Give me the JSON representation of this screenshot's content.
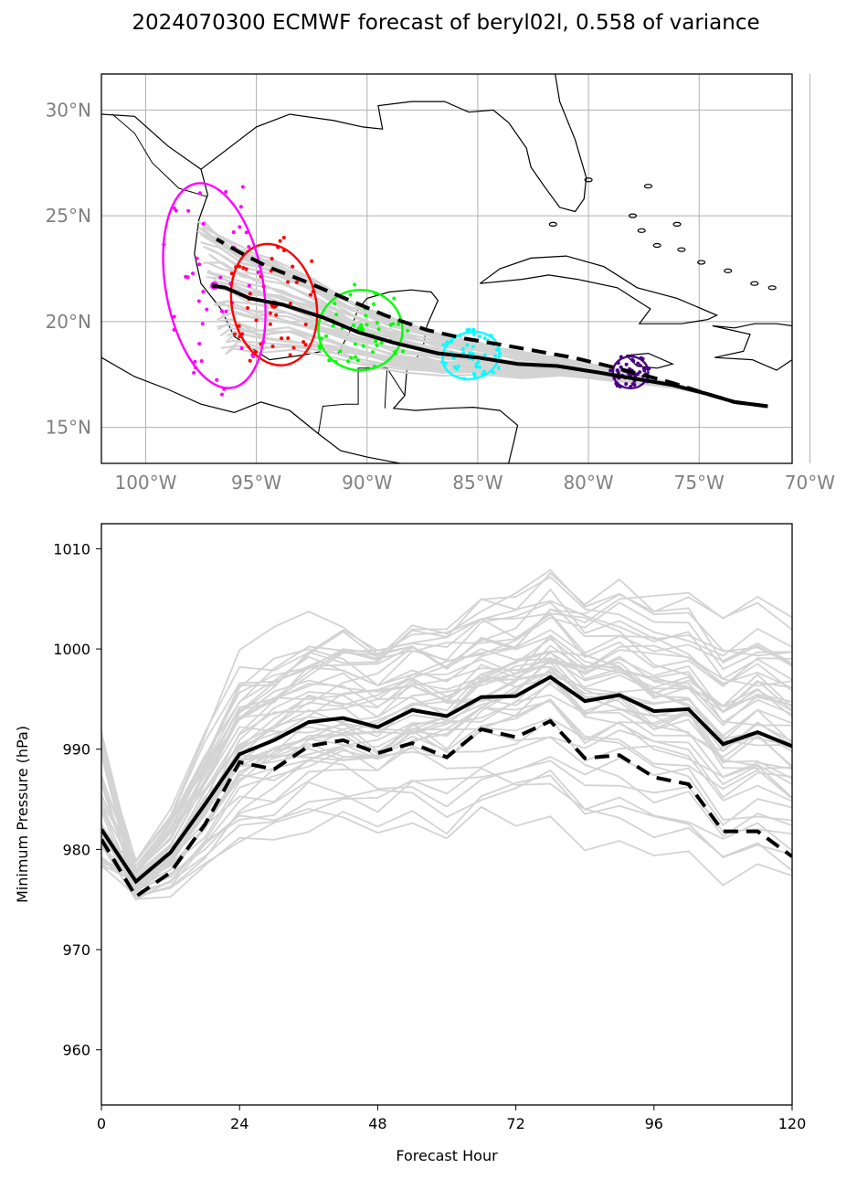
{
  "title": "2024070300 ECMWF forecast of beryl02l, 0.558 of variance",
  "chart_data": [
    {
      "type": "line",
      "subtype": "track-map",
      "xlabel": "",
      "ylabel": "",
      "xlim": [
        -102,
        -70.8
      ],
      "ylim": [
        13.3,
        31.7
      ],
      "x_ticks": [
        {
          "value": -100,
          "label": "100°W"
        },
        {
          "value": -95,
          "label": "95°W"
        },
        {
          "value": -90,
          "label": "90°W"
        },
        {
          "value": -85,
          "label": "85°W"
        },
        {
          "value": -80,
          "label": "80°W"
        },
        {
          "value": -75,
          "label": "75°W"
        },
        {
          "value": -70,
          "label": "70°W"
        }
      ],
      "y_ticks": [
        {
          "value": 15,
          "label": "15°N"
        },
        {
          "value": 20,
          "label": "20°N"
        },
        {
          "value": 25,
          "label": "25°N"
        },
        {
          "value": 30,
          "label": "30°N"
        }
      ],
      "grid": true,
      "colors": {
        "ensemble": "#d3d3d3",
        "mean": "#000000",
        "coast": "#000000",
        "grid": "#b0b0b0"
      },
      "mean_track": {
        "lon": [
          -71.9,
          -73.4,
          -74.7,
          -76.2,
          -77.9,
          -79.6,
          -81.4,
          -83.2,
          -85.0,
          -86.8,
          -88.8,
          -90.4,
          -92.0,
          -93.8,
          -95.3,
          -96.4,
          -97.0
        ],
        "lat": [
          16.0,
          16.2,
          16.6,
          17.0,
          17.3,
          17.6,
          17.9,
          18.0,
          18.3,
          18.5,
          19.0,
          19.5,
          20.2,
          20.8,
          21.1,
          21.6,
          21.7
        ]
      },
      "control_track": {
        "lon": [
          -71.9,
          -73.4,
          -74.7,
          -76.2,
          -77.6,
          -79.1,
          -80.7,
          -82.3,
          -83.9,
          -85.6,
          -87.3,
          -89.2,
          -91.0,
          -92.8,
          -94.5,
          -95.8,
          -96.8
        ],
        "lat": [
          16.0,
          16.2,
          16.6,
          17.1,
          17.5,
          17.9,
          18.3,
          18.6,
          18.9,
          19.2,
          19.6,
          20.3,
          21.1,
          21.9,
          22.6,
          23.3,
          23.9
        ]
      },
      "ellipses": [
        {
          "color": "#4b0082",
          "lon": -78.1,
          "lat": 17.6,
          "rlon": 0.8,
          "rlat": 0.75,
          "tilt": 0
        },
        {
          "color": "#00ffff",
          "lon": -85.3,
          "lat": 18.4,
          "rlon": 1.3,
          "rlat": 1.1,
          "tilt": -15
        },
        {
          "color": "#00ff00",
          "lon": -90.3,
          "lat": 19.6,
          "rlon": 1.9,
          "rlat": 1.9,
          "tilt": 0
        },
        {
          "color": "#ff0000",
          "lon": -94.2,
          "lat": 20.8,
          "rlon": 1.9,
          "rlat": 2.9,
          "tilt": -12
        },
        {
          "color": "#ff00ff",
          "lon": -96.9,
          "lat": 21.7,
          "rlon": 2.2,
          "rlat": 4.9,
          "tilt": -10
        }
      ]
    },
    {
      "type": "line",
      "subtype": "pressure",
      "xlabel": "Forecast Hour",
      "ylabel": "Minimum Pressure (hPa)",
      "xlim": [
        0,
        120
      ],
      "ylim": [
        954.5,
        1012.5
      ],
      "x_ticks": [
        0,
        24,
        48,
        72,
        96,
        120
      ],
      "y_ticks": [
        960,
        970,
        980,
        990,
        1000,
        1010
      ],
      "x": [
        0,
        6,
        12,
        18,
        24,
        30,
        36,
        42,
        48,
        54,
        60,
        66,
        72,
        78,
        84,
        90,
        96,
        102,
        108,
        114,
        120
      ],
      "series": [
        {
          "role": "mean",
          "style": "solid",
          "color": "#000000",
          "values": [
            982.0,
            976.8,
            979.7,
            984.5,
            989.5,
            990.9,
            992.7,
            993.1,
            992.2,
            993.9,
            993.3,
            995.2,
            995.3,
            997.2,
            994.8,
            995.4,
            993.8,
            994.0,
            990.5,
            991.7,
            990.3
          ]
        },
        {
          "role": "control",
          "style": "dashed",
          "color": "#000000",
          "values": [
            981.0,
            975.3,
            977.7,
            982.5,
            988.7,
            988.0,
            990.3,
            990.9,
            989.6,
            990.6,
            989.2,
            992.0,
            991.2,
            992.8,
            989.1,
            989.4,
            987.2,
            986.5,
            981.8,
            981.8,
            979.3
          ]
        }
      ],
      "colors": {
        "ensemble": "#d3d3d3"
      }
    }
  ]
}
